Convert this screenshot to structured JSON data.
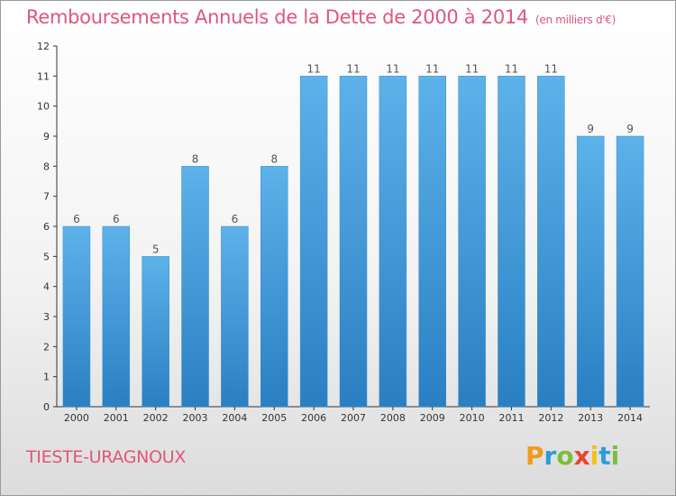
{
  "header": {
    "title": "Remboursements Annuels de la Dette de 2000 à 2014",
    "unit": "(en milliers d'€)"
  },
  "footer": {
    "commune": "TIESTE-URAGNOUX",
    "logo_letters": [
      "P",
      "r",
      "o",
      "x",
      "i",
      "t",
      "i"
    ],
    "logo_colors": [
      "#f29a1a",
      "#2e9cd8",
      "#7bbf3a",
      "#e8452c",
      "#f2c11a",
      "#2e9cd8",
      "#7bbf3a"
    ]
  },
  "chart_data": {
    "type": "bar",
    "categories": [
      "2000",
      "2001",
      "2002",
      "2003",
      "2004",
      "2005",
      "2006",
      "2007",
      "2008",
      "2009",
      "2010",
      "2011",
      "2012",
      "2013",
      "2014"
    ],
    "values": [
      6,
      6,
      5,
      8,
      6,
      8,
      11,
      11,
      11,
      11,
      11,
      11,
      11,
      9,
      9
    ],
    "ylim": [
      0,
      12
    ],
    "yticks": [
      0,
      1,
      2,
      3,
      4,
      5,
      6,
      7,
      8,
      9,
      10,
      11,
      12
    ],
    "grid": false,
    "bar_color": "#4aa3df",
    "label_color": "#555555"
  }
}
